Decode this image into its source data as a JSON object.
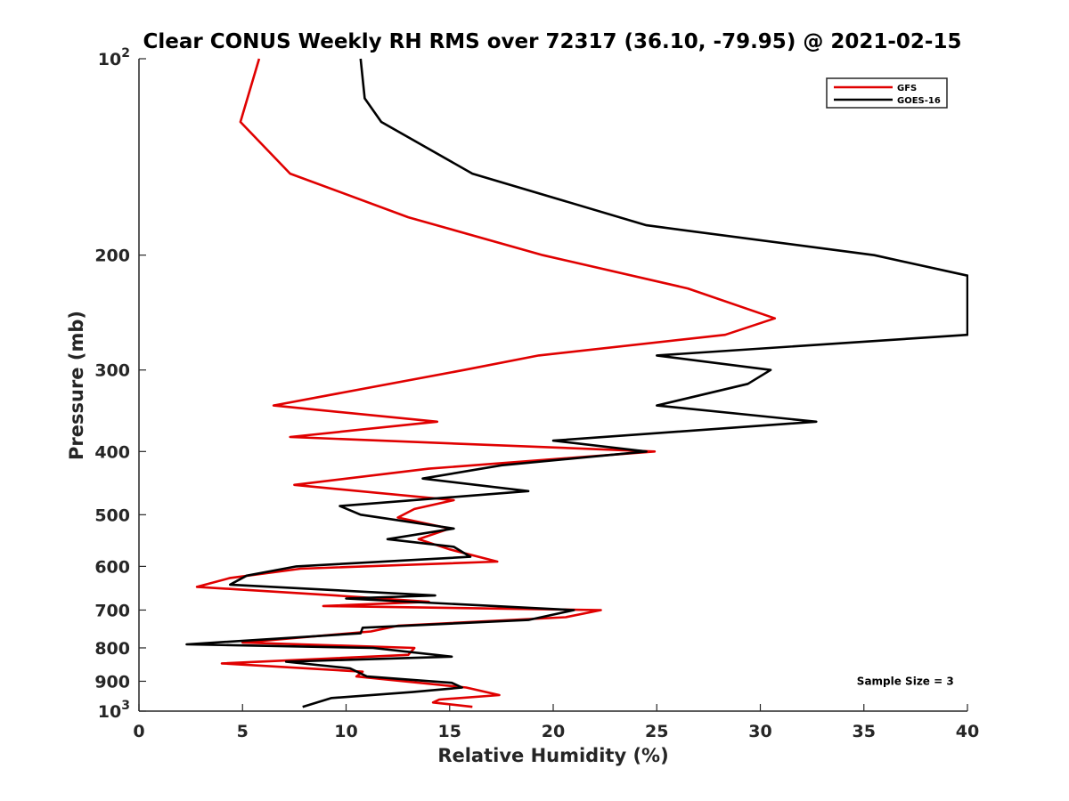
{
  "chart_data": {
    "type": "line",
    "title": "Clear CONUS Weekly RH RMS over 72317 (36.10, -79.95) @ 2021-02-15",
    "xlabel": "Relative Humidity (%)",
    "ylabel": "Pressure (mb)",
    "xlim": [
      0,
      40
    ],
    "ylim": [
      100,
      1000
    ],
    "y_scale": "log",
    "y_reversed": true,
    "grid": false,
    "legend_position": "top-right",
    "x_ticks": [
      0,
      5,
      10,
      15,
      20,
      25,
      30,
      35,
      40
    ],
    "x_tick_labels": [
      "0",
      "5",
      "10",
      "15",
      "20",
      "25",
      "30",
      "35",
      "40"
    ],
    "y_ticks": [
      100,
      200,
      300,
      400,
      500,
      600,
      700,
      800,
      900,
      1000
    ],
    "y_tick_labels": [
      {
        "base": "10",
        "exp": "2"
      },
      {
        "base": "200",
        "exp": ""
      },
      {
        "base": "300",
        "exp": ""
      },
      {
        "base": "400",
        "exp": ""
      },
      {
        "base": "500",
        "exp": ""
      },
      {
        "base": "600",
        "exp": ""
      },
      {
        "base": "700",
        "exp": ""
      },
      {
        "base": "800",
        "exp": ""
      },
      {
        "base": "900",
        "exp": ""
      },
      {
        "base": "10",
        "exp": "3"
      }
    ],
    "series": [
      {
        "name": "GFS",
        "color": "#e00000",
        "points": [
          [
            5.8,
            100
          ],
          [
            4.9,
            125
          ],
          [
            7.3,
            150
          ],
          [
            13.0,
            175
          ],
          [
            19.5,
            200
          ],
          [
            26.5,
            225
          ],
          [
            30.7,
            250
          ],
          [
            28.3,
            265
          ],
          [
            19.3,
            285
          ],
          [
            15.7,
            300
          ],
          [
            6.5,
            340
          ],
          [
            14.4,
            360
          ],
          [
            7.3,
            380
          ],
          [
            24.9,
            400
          ],
          [
            14.0,
            425
          ],
          [
            7.5,
            450
          ],
          [
            15.2,
            475
          ],
          [
            13.3,
            490
          ],
          [
            12.5,
            505
          ],
          [
            15.0,
            525
          ],
          [
            13.5,
            545
          ],
          [
            15.0,
            565
          ],
          [
            17.3,
            590
          ],
          [
            7.8,
            605
          ],
          [
            4.4,
            625
          ],
          [
            2.8,
            645
          ],
          [
            9.5,
            665
          ],
          [
            14.0,
            680
          ],
          [
            8.9,
            690
          ],
          [
            22.3,
            700
          ],
          [
            20.6,
            718
          ],
          [
            12.5,
            740
          ],
          [
            11.2,
            755
          ],
          [
            5.0,
            785
          ],
          [
            13.3,
            800
          ],
          [
            13.0,
            820
          ],
          [
            4.0,
            845
          ],
          [
            10.8,
            870
          ],
          [
            10.5,
            885
          ],
          [
            15.8,
            920
          ],
          [
            17.4,
            945
          ],
          [
            14.5,
            960
          ],
          [
            14.2,
            970
          ],
          [
            16.1,
            985
          ]
        ]
      },
      {
        "name": "GOES-16",
        "color": "#000000",
        "points": [
          [
            10.7,
            100
          ],
          [
            10.9,
            115
          ],
          [
            11.7,
            125
          ],
          [
            16.1,
            150
          ],
          [
            24.5,
            180
          ],
          [
            35.5,
            200
          ],
          [
            40.0,
            215
          ],
          [
            40.0,
            265
          ],
          [
            25.0,
            285
          ],
          [
            30.5,
            300
          ],
          [
            29.4,
            315
          ],
          [
            25.0,
            340
          ],
          [
            32.7,
            360
          ],
          [
            20.0,
            385
          ],
          [
            24.5,
            400
          ],
          [
            17.5,
            420
          ],
          [
            13.7,
            440
          ],
          [
            18.8,
            460
          ],
          [
            9.7,
            485
          ],
          [
            10.7,
            500
          ],
          [
            15.2,
            525
          ],
          [
            12.0,
            545
          ],
          [
            15.2,
            560
          ],
          [
            16.0,
            580
          ],
          [
            7.6,
            600
          ],
          [
            5.2,
            620
          ],
          [
            4.4,
            640
          ],
          [
            14.3,
            665
          ],
          [
            10.0,
            672
          ],
          [
            21.0,
            700
          ],
          [
            18.8,
            725
          ],
          [
            10.8,
            745
          ],
          [
            10.7,
            760
          ],
          [
            2.3,
            790
          ],
          [
            11.3,
            800
          ],
          [
            15.1,
            825
          ],
          [
            7.1,
            840
          ],
          [
            10.2,
            860
          ],
          [
            11.0,
            885
          ],
          [
            15.1,
            905
          ],
          [
            15.6,
            920
          ],
          [
            13.2,
            935
          ],
          [
            9.3,
            955
          ],
          [
            7.9,
            985
          ]
        ]
      }
    ],
    "annotations": [
      {
        "text": "Sample Size = 3",
        "x": 37,
        "y": 900
      }
    ]
  }
}
